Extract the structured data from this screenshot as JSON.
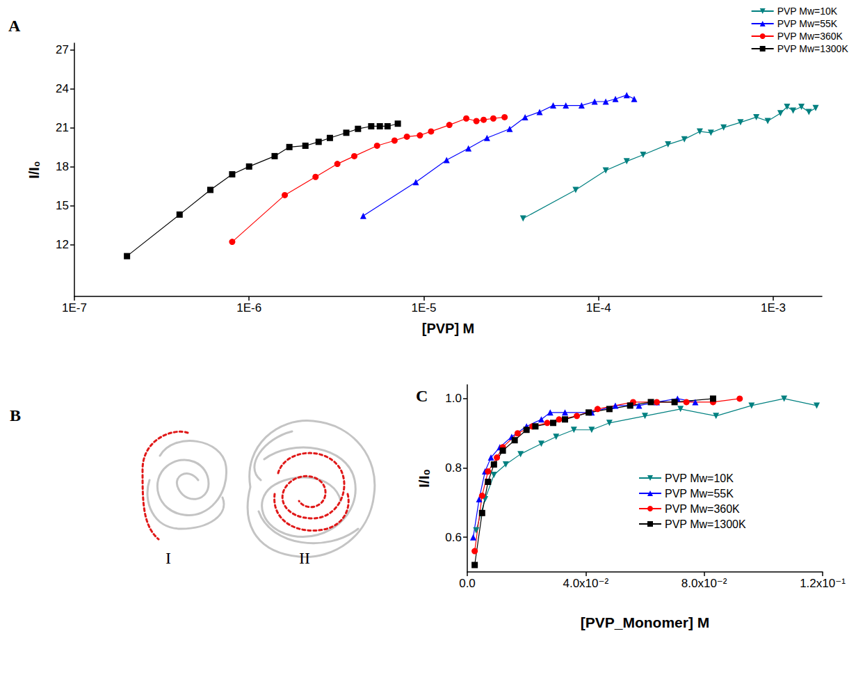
{
  "chart_data": [
    {
      "type": "line",
      "log": "x",
      "grid": false,
      "legend": "top-right",
      "xlabel": "[PVP] M",
      "ylabel": "I/I₀",
      "xlim": [
        1e-07,
        0.0019
      ],
      "xticks": [
        {
          "value": 1e-07,
          "label": "1E-7"
        },
        {
          "value": 1e-06,
          "label": "1E-6"
        },
        {
          "value": 1e-05,
          "label": "1E-5"
        },
        {
          "value": 0.0001,
          "label": "1E-4"
        },
        {
          "value": 0.001,
          "label": "1E-3"
        }
      ],
      "ylim": [
        8,
        27.5
      ],
      "yticks": [
        12,
        15,
        18,
        21,
        24,
        27
      ],
      "series": [
        {
          "name": "PVP Mw=10K",
          "color": "#008080",
          "marker": "triangle-down",
          "x": [
            3.7e-05,
            7.4e-05,
            0.00011,
            0.000145,
            0.00018,
            0.00025,
            0.00031,
            0.00038,
            0.00044,
            0.00052,
            0.00065,
            0.0008,
            0.00093,
            0.0011,
            0.0012,
            0.0013,
            0.00145,
            0.0016,
            0.00175
          ],
          "values": [
            14.0,
            16.2,
            17.7,
            18.4,
            18.9,
            19.7,
            20.1,
            20.7,
            20.6,
            21.0,
            21.4,
            21.8,
            21.5,
            22.1,
            22.6,
            22.3,
            22.6,
            22.2,
            22.5
          ]
        },
        {
          "name": "PVP Mw=55K",
          "color": "#0000ff",
          "marker": "triangle",
          "x": [
            4.5e-06,
            9e-06,
            1.35e-05,
            1.8e-05,
            2.3e-05,
            3.1e-05,
            3.8e-05,
            4.6e-05,
            5.5e-05,
            6.5e-05,
            8e-05,
            9.5e-05,
            0.00011,
            0.000125,
            0.000145,
            0.00016
          ],
          "values": [
            14.2,
            16.8,
            18.5,
            19.4,
            20.2,
            20.9,
            21.8,
            22.2,
            22.7,
            22.7,
            22.7,
            23.0,
            23.0,
            23.2,
            23.5,
            23.2
          ]
        },
        {
          "name": "PVP Mw=360K",
          "color": "#ff0000",
          "marker": "circle",
          "x": [
            8e-07,
            1.6e-06,
            2.4e-06,
            3.2e-06,
            4e-06,
            5.4e-06,
            6.8e-06,
            8e-06,
            9.5e-06,
            1.1e-05,
            1.4e-05,
            1.75e-05,
            2e-05,
            2.2e-05,
            2.5e-05,
            2.9e-05
          ],
          "values": [
            12.2,
            15.8,
            17.2,
            18.2,
            18.8,
            19.6,
            20.0,
            20.3,
            20.4,
            20.7,
            21.2,
            21.7,
            21.5,
            21.6,
            21.7,
            21.8
          ]
        },
        {
          "name": "PVP Mw=1300K",
          "color": "#000000",
          "marker": "square",
          "x": [
            2e-07,
            4e-07,
            6e-07,
            8e-07,
            1e-06,
            1.4e-06,
            1.7e-06,
            2.1e-06,
            2.5e-06,
            2.9e-06,
            3.6e-06,
            4.2e-06,
            5e-06,
            5.6e-06,
            6.2e-06,
            7.1e-06
          ],
          "values": [
            11.1,
            14.3,
            16.2,
            17.4,
            18.0,
            18.8,
            19.5,
            19.6,
            19.9,
            20.2,
            20.6,
            20.9,
            21.1,
            21.1,
            21.1,
            21.3
          ]
        }
      ]
    },
    {
      "type": "line",
      "grid": false,
      "legend": "center-right",
      "xlabel": "[PVP_Monomer] M",
      "ylabel": "I/I₀",
      "xlim": [
        0,
        0.12
      ],
      "xticks": [
        {
          "value": 0,
          "label": "0.0"
        },
        {
          "value": 0.04,
          "label": "4.0x10⁻²"
        },
        {
          "value": 0.08,
          "label": "8.0x10⁻²"
        },
        {
          "value": 0.12,
          "label": "1.2x10⁻¹"
        }
      ],
      "ylim": [
        0.5,
        1.04
      ],
      "yticks": [
        0.6,
        0.8,
        {
          "value": 1,
          "label": "1.0"
        }
      ],
      "series": [
        {
          "name": "PVP Mw=10K",
          "color": "#008080",
          "marker": "triangle-down",
          "x": [
            0.003,
            0.006,
            0.009,
            0.013,
            0.018,
            0.025,
            0.03,
            0.036,
            0.042,
            0.048,
            0.06,
            0.072,
            0.084,
            0.096,
            0.107,
            0.118
          ],
          "values": [
            0.62,
            0.71,
            0.78,
            0.81,
            0.84,
            0.87,
            0.89,
            0.91,
            0.91,
            0.93,
            0.95,
            0.97,
            0.95,
            0.98,
            1.0,
            0.98
          ]
        },
        {
          "name": "PVP Mw=55K",
          "color": "#0000ff",
          "marker": "triangle",
          "x": [
            0.002,
            0.004,
            0.006,
            0.008,
            0.011,
            0.015,
            0.02,
            0.025,
            0.028,
            0.033,
            0.042,
            0.05,
            0.058,
            0.064,
            0.071,
            0.077
          ],
          "values": [
            0.6,
            0.71,
            0.79,
            0.83,
            0.86,
            0.89,
            0.92,
            0.94,
            0.96,
            0.96,
            0.96,
            0.98,
            0.98,
            0.99,
            1.0,
            0.99
          ]
        },
        {
          "name": "PVP Mw=360K",
          "color": "#ff0000",
          "marker": "circle",
          "x": [
            0.0025,
            0.005,
            0.007,
            0.01,
            0.012,
            0.017,
            0.022,
            0.027,
            0.031,
            0.037,
            0.044,
            0.056,
            0.064,
            0.074,
            0.083,
            0.092
          ],
          "values": [
            0.56,
            0.72,
            0.79,
            0.83,
            0.86,
            0.9,
            0.92,
            0.93,
            0.94,
            0.95,
            0.97,
            0.99,
            0.99,
            0.99,
            0.99,
            1.0
          ]
        },
        {
          "name": "PVP Mw=1300K",
          "color": "#000000",
          "marker": "square",
          "x": [
            0.0025,
            0.005,
            0.007,
            0.009,
            0.012,
            0.016,
            0.02,
            0.023,
            0.029,
            0.033,
            0.041,
            0.048,
            0.055,
            0.062,
            0.07,
            0.083
          ],
          "values": [
            0.52,
            0.67,
            0.76,
            0.81,
            0.85,
            0.88,
            0.91,
            0.92,
            0.93,
            0.94,
            0.96,
            0.97,
            0.98,
            0.99,
            0.99,
            1.0
          ]
        }
      ]
    }
  ],
  "panel_labels": [
    "A",
    "B",
    "C"
  ],
  "diagram": {
    "labels": [
      "I",
      "II"
    ]
  }
}
